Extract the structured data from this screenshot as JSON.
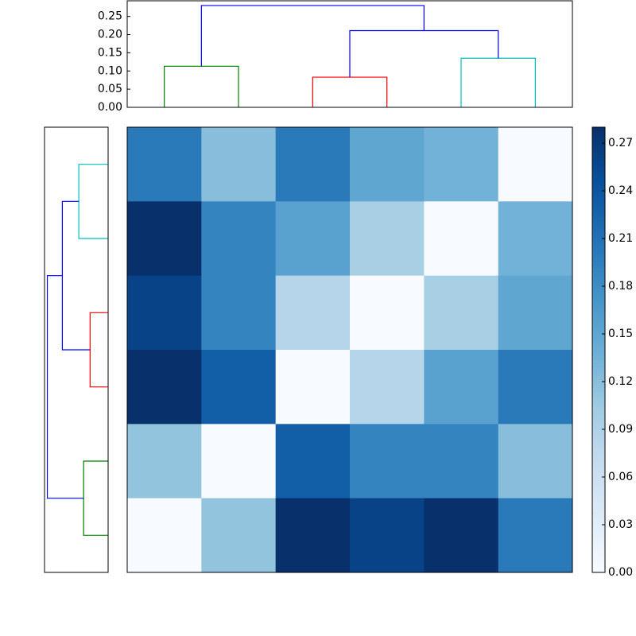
{
  "chart_data": {
    "type": "clustermap",
    "colormap": "Blues",
    "clim": [
      0,
      0.28
    ],
    "matrix": [
      [
        0.2,
        0.12,
        0.2,
        0.15,
        0.135,
        0
      ],
      [
        0.28,
        0.19,
        0.155,
        0.095,
        0,
        0.135
      ],
      [
        0.26,
        0.19,
        0.083,
        0,
        0.095,
        0.15
      ],
      [
        0.28,
        0.23,
        0,
        0.083,
        0.155,
        0.2
      ],
      [
        0.113,
        0,
        0.23,
        0.19,
        0.19,
        0.12
      ],
      [
        0,
        0.113,
        0.28,
        0.26,
        0.28,
        0.2
      ]
    ],
    "dendrogram": {
      "leaf_lim": [
        0,
        60
      ],
      "ylim": [
        0,
        0.293
      ],
      "yticks": [
        {
          "value": 0,
          "label": "0.00"
        },
        {
          "value": 0.05,
          "label": "0.05"
        },
        {
          "value": 0.1,
          "label": "0.10"
        },
        {
          "value": 0.15,
          "label": "0.15"
        },
        {
          "value": 0.2,
          "label": "0.20"
        },
        {
          "value": 0.25,
          "label": "0.25"
        }
      ],
      "links": [
        {
          "color": "#008000",
          "icoord": [
            5,
            5,
            15,
            15
          ],
          "dcoord": [
            0,
            0.113,
            0.113,
            0
          ]
        },
        {
          "color": "#ff0000",
          "icoord": [
            25,
            25,
            35,
            35
          ],
          "dcoord": [
            0,
            0.083,
            0.083,
            0
          ]
        },
        {
          "color": "#00bfbf",
          "icoord": [
            45,
            45,
            55,
            55
          ],
          "dcoord": [
            0,
            0.135,
            0.135,
            0
          ]
        },
        {
          "color": "#0000ff",
          "icoord": [
            30,
            30,
            50,
            50
          ],
          "dcoord": [
            0.083,
            0.211,
            0.211,
            0.135
          ]
        },
        {
          "color": "#0000ff",
          "icoord": [
            10,
            10,
            40,
            40
          ],
          "dcoord": [
            0.113,
            0.28,
            0.28,
            0.211
          ]
        }
      ]
    },
    "colorbar_ticks": [
      {
        "value": 0,
        "label": "0.00"
      },
      {
        "value": 0.03,
        "label": "0.03"
      },
      {
        "value": 0.06,
        "label": "0.06"
      },
      {
        "value": 0.09,
        "label": "0.09"
      },
      {
        "value": 0.12,
        "label": "0.12"
      },
      {
        "value": 0.15,
        "label": "0.15"
      },
      {
        "value": 0.18,
        "label": "0.18"
      },
      {
        "value": 0.21,
        "label": "0.21"
      },
      {
        "value": 0.24,
        "label": "0.24"
      },
      {
        "value": 0.27,
        "label": "0.27"
      }
    ]
  }
}
